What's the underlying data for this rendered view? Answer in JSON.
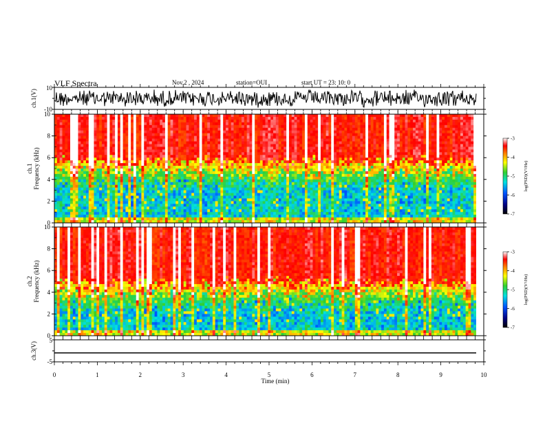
{
  "header": {
    "title": "VLF Spectra",
    "date": "Nov.2  , 2024",
    "station": "station=OUI",
    "start": "start  UT  =   23: 10: 0"
  },
  "chart_data": [
    {
      "type": "line",
      "panel": "ch1-waveform",
      "ylabel": "ch.1(V)",
      "ylim": [
        -10,
        10
      ],
      "yticks": [
        "10",
        "-10"
      ],
      "x_range_min": [
        0,
        10
      ],
      "note_series": "dense noise waveform"
    },
    {
      "type": "heatmap",
      "panel": "ch1-spectrogram",
      "ylabel": "ch.1\nFrequency  (kHz)",
      "ylim": [
        0,
        10
      ],
      "yticks": [
        0,
        2,
        4,
        6,
        8,
        10
      ],
      "x_range_min": [
        0,
        10
      ],
      "colorbar": {
        "label": "log(PSD)(V²/Hz)",
        "range": [
          -7,
          -3
        ],
        "ticks": [
          -3,
          -4,
          -5,
          -6,
          -7
        ]
      }
    },
    {
      "type": "heatmap",
      "panel": "ch2-spectrogram",
      "ylabel": "ch.2\nFrequency  (kHz)",
      "ylim": [
        0,
        10
      ],
      "yticks": [
        0,
        2,
        4,
        6,
        8,
        10
      ],
      "x_range_min": [
        0,
        10
      ],
      "colorbar": {
        "label": "log(PSD)(V²/Hz)",
        "range": [
          -7,
          -3
        ],
        "ticks": [
          -3,
          -4,
          -5,
          -6,
          -7
        ]
      }
    },
    {
      "type": "line",
      "panel": "ch3-waveform",
      "ylabel": "ch.3(V)",
      "ylim": [
        -5,
        5
      ],
      "yticks": [
        "5",
        "-5"
      ],
      "series": [
        {
          "values": [
            -1.6,
            -1.6
          ]
        }
      ],
      "x": [
        0,
        9.8
      ]
    }
  ],
  "xaxis": {
    "label": "Time  (min)",
    "ticks": [
      "0",
      "1",
      "2",
      "3",
      "4",
      "5",
      "6",
      "7",
      "8",
      "9",
      "10"
    ]
  },
  "ch1_y_labels": {
    "top": "10",
    "bottom": "-10",
    "axis": "ch.1(V)"
  },
  "ch3_y_labels": {
    "top": "5",
    "bottom": "-5",
    "axis": "ch.3(V)"
  },
  "spec1_labels": {
    "line1": "ch.1",
    "line2": "Frequency  (kHz)"
  },
  "spec2_labels": {
    "line1": "ch.2",
    "line2": "Frequency  (kHz)"
  },
  "colorbar_label": "log(PSD)(V²/Hz)",
  "cb_ticks": [
    "-3",
    "-4",
    "-5",
    "-6",
    "-7"
  ],
  "freq_ticks": [
    "0",
    "2",
    "4",
    "6",
    "8",
    "10"
  ]
}
